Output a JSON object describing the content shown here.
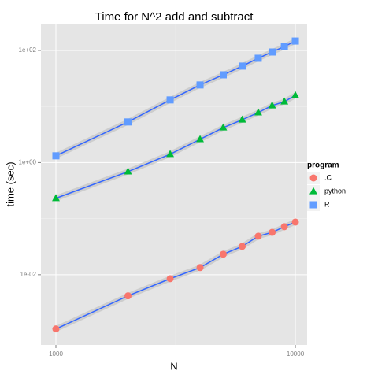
{
  "chart_data": {
    "type": "scatter",
    "title": "Time for N^2 add and subtract",
    "x_label": "N",
    "y_label": "time (sec)",
    "x": [
      1000,
      2000,
      3000,
      4000,
      5000,
      6000,
      7000,
      8000,
      9000,
      10000
    ],
    "series": [
      {
        "name": ".C",
        "color": "#F8766D",
        "shape": "circle",
        "values": [
          0.00108,
          0.0042,
          0.0085,
          0.0134,
          0.0232,
          0.032,
          0.0487,
          0.057,
          0.0718,
          0.087
        ]
      },
      {
        "name": "python",
        "color": "#00BA38",
        "shape": "triangle",
        "values": [
          0.231,
          0.69,
          1.41,
          2.6,
          4.2,
          5.8,
          7.8,
          10.4,
          12.2,
          15.8
        ]
      },
      {
        "name": "R",
        "color": "#619CFF",
        "shape": "square",
        "values": [
          1.32,
          5.3,
          13.1,
          24.2,
          36.7,
          52.5,
          72.4,
          93.7,
          117,
          147
        ]
      }
    ],
    "smooth": true,
    "smooth_color": "#3366FF",
    "xlog": true,
    "ylog": true,
    "xlim": [
      866,
      11200
    ],
    "ylim": [
      0.00056,
      300
    ],
    "xticks": [
      1000,
      10000
    ],
    "yticks": [
      {
        "value": 0.01,
        "label": "1e-02"
      },
      {
        "value": 1,
        "label": "1e+00"
      },
      {
        "value": 100,
        "label": "1e+02"
      }
    ],
    "grid": true,
    "legend_title": "program",
    "legend_position": "right"
  }
}
